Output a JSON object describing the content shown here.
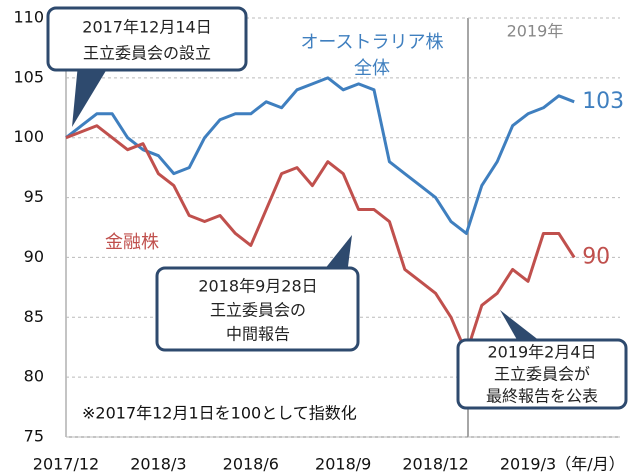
{
  "chart_data": {
    "type": "line",
    "categories": [
      "2017/12",
      null,
      null,
      null,
      null,
      null,
      "2018/3",
      null,
      null,
      null,
      null,
      null,
      "2018/6",
      null,
      null,
      null,
      null,
      null,
      "2018/9",
      null,
      null,
      null,
      null,
      null,
      "2018/12",
      null,
      null,
      null,
      null,
      null,
      "2019/3",
      null,
      null,
      null
    ],
    "series": [
      {
        "name": "オーストラリア株全体",
        "color": "#3f7fbf",
        "values": [
          100,
          101,
          102,
          102,
          100,
          99,
          98.5,
          97,
          97.5,
          100,
          101.5,
          102,
          102,
          103,
          102.5,
          104,
          104.5,
          105,
          104,
          104.5,
          104,
          98,
          97,
          96,
          95,
          93,
          92,
          96,
          98,
          101,
          102,
          102.5,
          103.5,
          103
        ]
      },
      {
        "name": "金融株",
        "color": "#c0504d",
        "values": [
          100,
          100.5,
          101,
          100,
          99,
          99.5,
          97,
          96,
          93.5,
          93,
          93.5,
          92,
          91,
          94,
          97,
          97.5,
          96,
          98,
          97,
          94,
          94,
          93,
          89,
          88,
          87,
          85,
          82,
          86,
          87,
          89,
          88,
          92,
          92,
          90
        ]
      }
    ],
    "ylim": [
      75,
      110
    ],
    "yticks": [
      75,
      80,
      85,
      90,
      95,
      100,
      105,
      110
    ],
    "grid": true,
    "x_unit": "（年/月）",
    "divider_label": "2019年",
    "note": "※2017年12月1日を100として指数化",
    "annotations": [
      {
        "lines": [
          "2017年12月14日",
          "王立委員会の設立"
        ]
      },
      {
        "lines": [
          "2018年9月28日",
          "王立委員会の",
          "中間報告"
        ]
      },
      {
        "lines": [
          "2019年2月4日",
          "王立委員会が",
          "最終報告を公表"
        ]
      }
    ]
  }
}
